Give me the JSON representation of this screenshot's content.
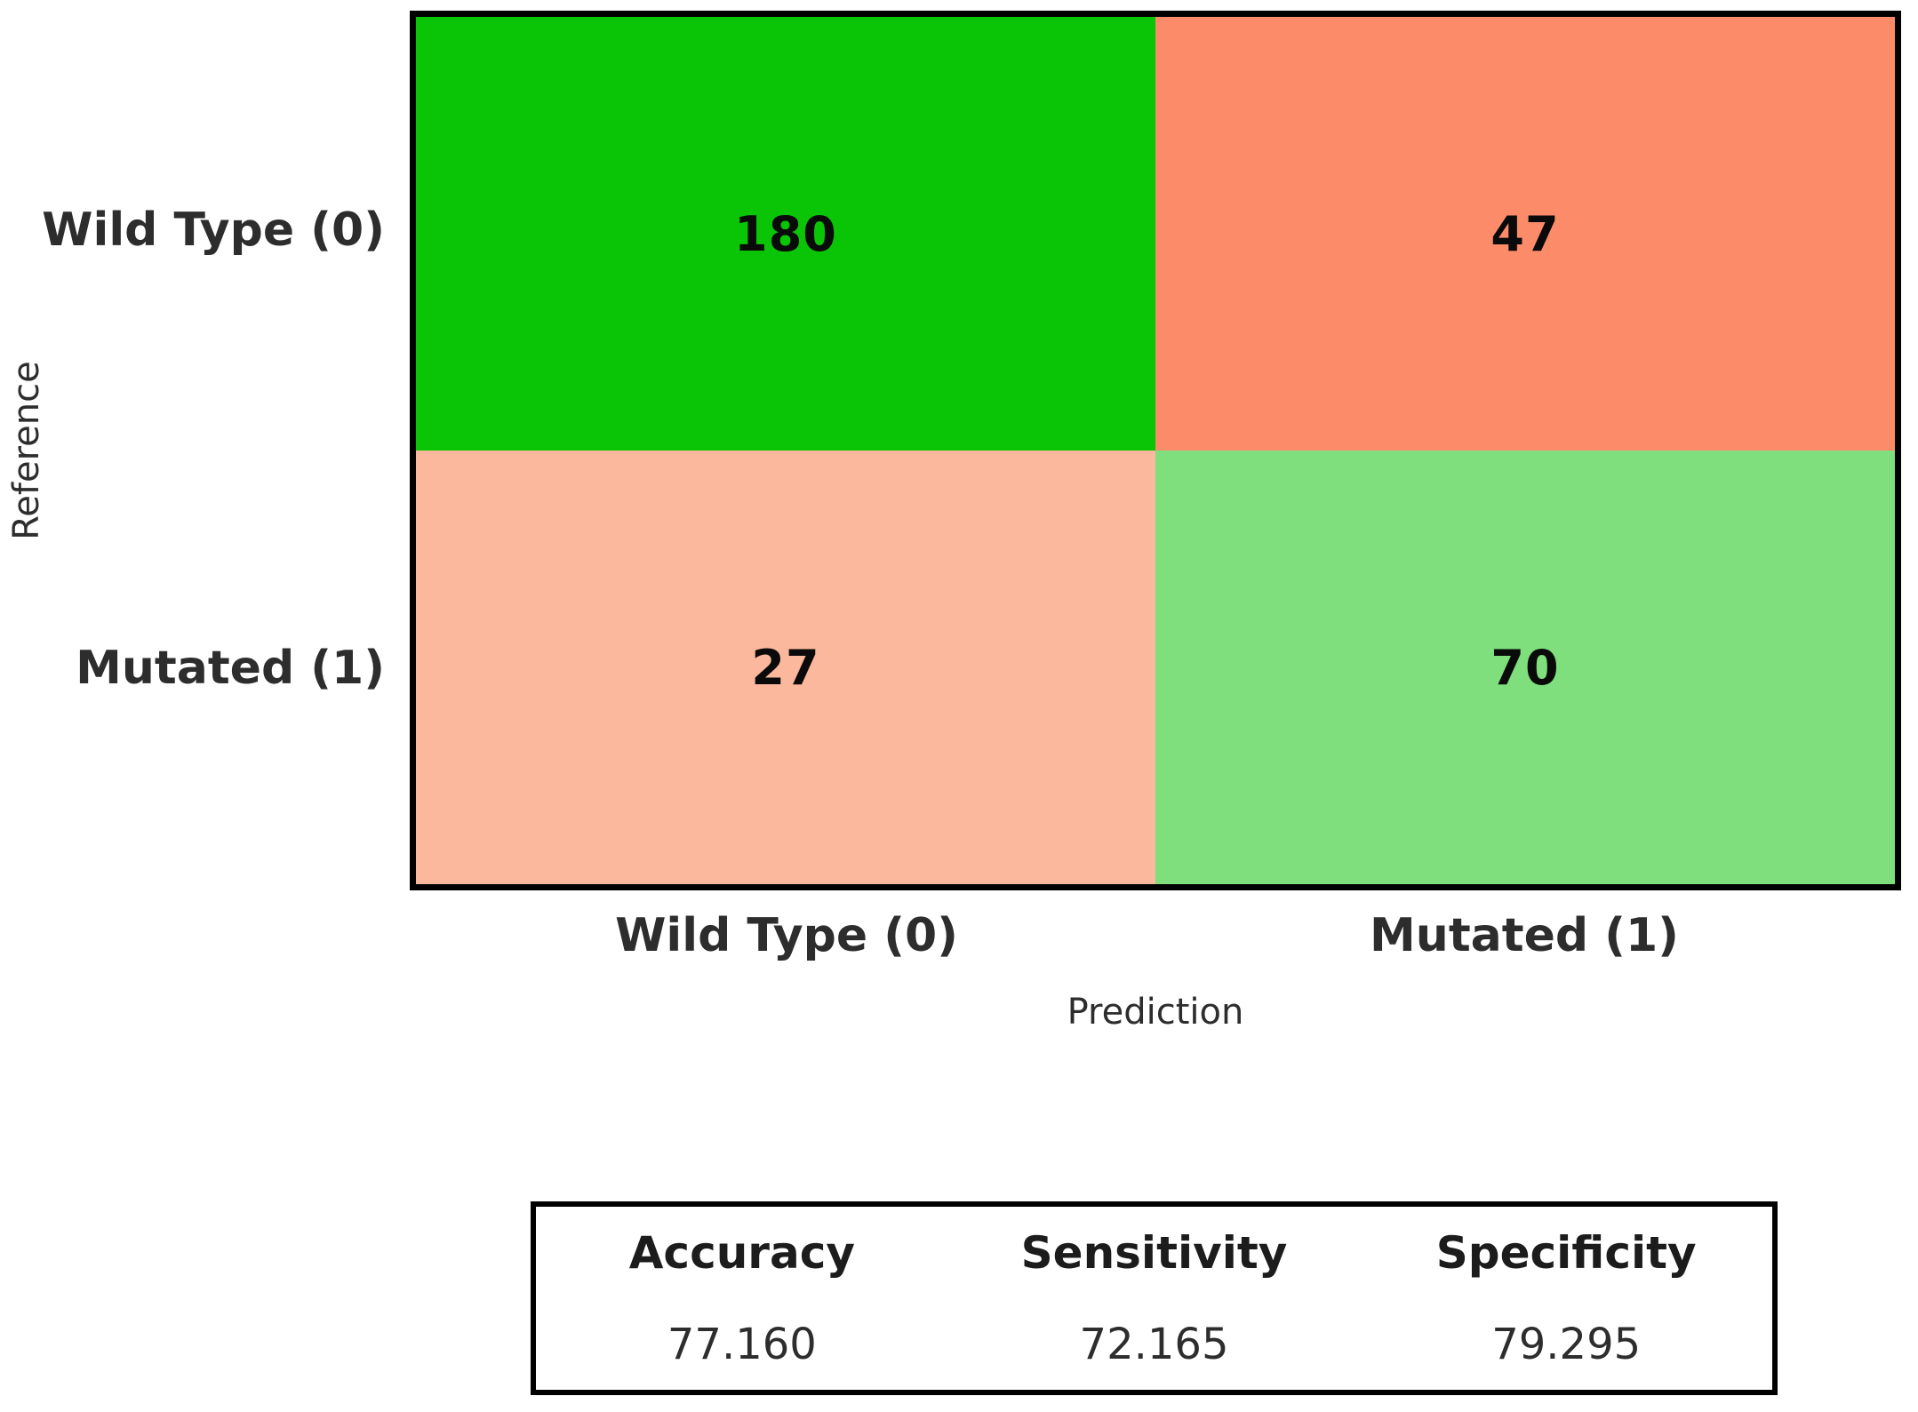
{
  "chart_data": {
    "type": "heatmap",
    "subtype": "confusion-matrix",
    "xlabel": "Prediction",
    "ylabel": "Reference",
    "x_categories": [
      "Wild Type (0)",
      "Mutated (1)"
    ],
    "y_categories": [
      "Wild Type (0)",
      "Mutated (1)"
    ],
    "matrix": [
      [
        180,
        47
      ],
      [
        27,
        70
      ]
    ],
    "cells": [
      {
        "row": "Wild Type (0)",
        "col": "Wild Type (0)",
        "value": "180",
        "color": "#0ac406"
      },
      {
        "row": "Wild Type (0)",
        "col": "Mutated (1)",
        "value": "47",
        "color": "#fc8b6a"
      },
      {
        "row": "Mutated (1)",
        "col": "Wild Type (0)",
        "value": "27",
        "color": "#fcb89c"
      },
      {
        "row": "Mutated (1)",
        "col": "Mutated (1)",
        "value": "70",
        "color": "#7edf7c"
      }
    ],
    "layout": {
      "grid": "off",
      "legend": "none",
      "border_color": "#000000"
    },
    "metrics_table": {
      "columns": [
        {
          "header": "Accuracy",
          "value": "77.160"
        },
        {
          "header": "Sensitivity",
          "value": "72.165"
        },
        {
          "header": "Specificity",
          "value": "79.295"
        }
      ]
    }
  }
}
